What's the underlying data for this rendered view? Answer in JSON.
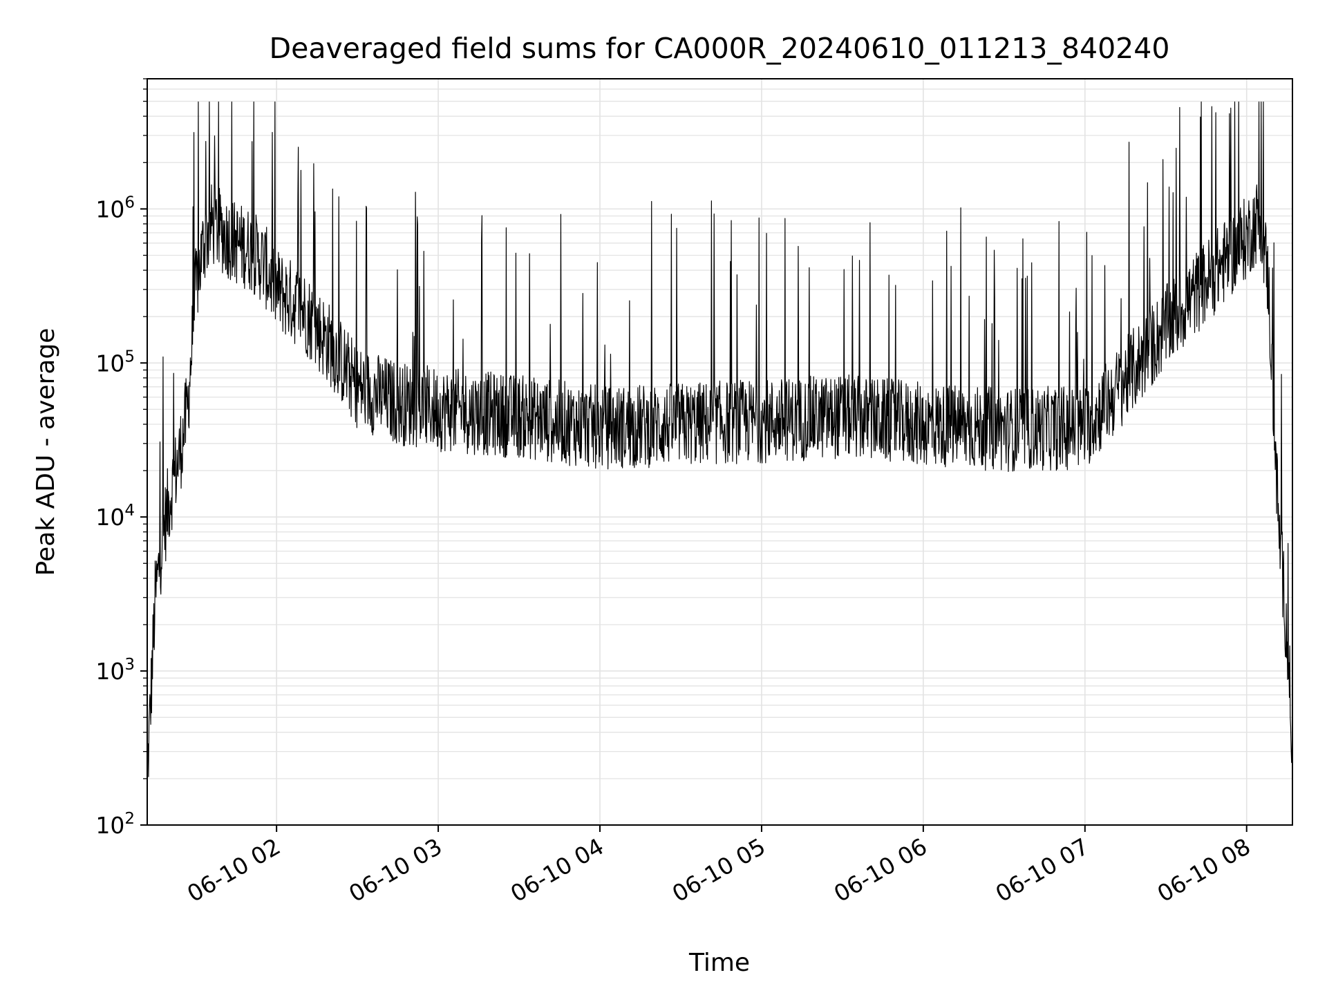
{
  "chart_data": {
    "type": "line",
    "title": "Deaveraged field sums for CA000R_20240610_011213_840240",
    "xlabel": "Time",
    "ylabel": "Peak ADU - average",
    "y_scale": "log",
    "ylim": [
      100,
      7000000
    ],
    "xlim": [
      "06-10 01:12",
      "06-10 08:17"
    ],
    "x_ticks": [
      "06-10 02",
      "06-10 03",
      "06-10 04",
      "06-10 05",
      "06-10 06",
      "06-10 07",
      "06-10 08"
    ],
    "y_ticks": [
      {
        "base": "10",
        "exp": "2"
      },
      {
        "base": "10",
        "exp": "3"
      },
      {
        "base": "10",
        "exp": "4"
      },
      {
        "base": "10",
        "exp": "5"
      },
      {
        "base": "10",
        "exp": "6"
      }
    ],
    "grid": true,
    "line_color": "#000000",
    "grid_color": "#e3e3e3",
    "series": [
      {
        "x": [
          "06-10 01:12",
          "06-10 01:15",
          "06-10 01:18",
          "06-10 01:21",
          "06-10 01:24",
          "06-10 01:27",
          "06-10 01:30",
          "06-10 01:33",
          "06-10 01:36",
          "06-10 01:40",
          "06-10 01:45",
          "06-10 01:50",
          "06-10 01:55",
          "06-10 02:00",
          "06-10 02:10",
          "06-10 02:20",
          "06-10 02:30",
          "06-10 02:45",
          "06-10 03:00",
          "06-10 03:30",
          "06-10 04:00",
          "06-10 04:30",
          "06-10 05:00",
          "06-10 05:30",
          "06-10 06:00",
          "06-10 06:30",
          "06-10 07:00",
          "06-10 07:10",
          "06-10 07:20",
          "06-10 07:30",
          "06-10 07:40",
          "06-10 07:50",
          "06-10 08:00",
          "06-10 08:05",
          "06-10 08:08",
          "06-10 08:10",
          "06-10 08:12",
          "06-10 08:14",
          "06-10 08:16",
          "06-10 08:17"
        ],
        "y": [
          200,
          3000,
          8000,
          15000,
          25000,
          50000,
          300000,
          600000,
          800000,
          700000,
          600000,
          550000,
          450000,
          300000,
          220000,
          130000,
          70000,
          55000,
          50000,
          45000,
          38000,
          40000,
          42000,
          45000,
          40000,
          37000,
          38000,
          60000,
          100000,
          170000,
          270000,
          420000,
          650000,
          900000,
          350000,
          50000,
          8000,
          3000,
          800,
          300
        ]
      }
    ]
  }
}
